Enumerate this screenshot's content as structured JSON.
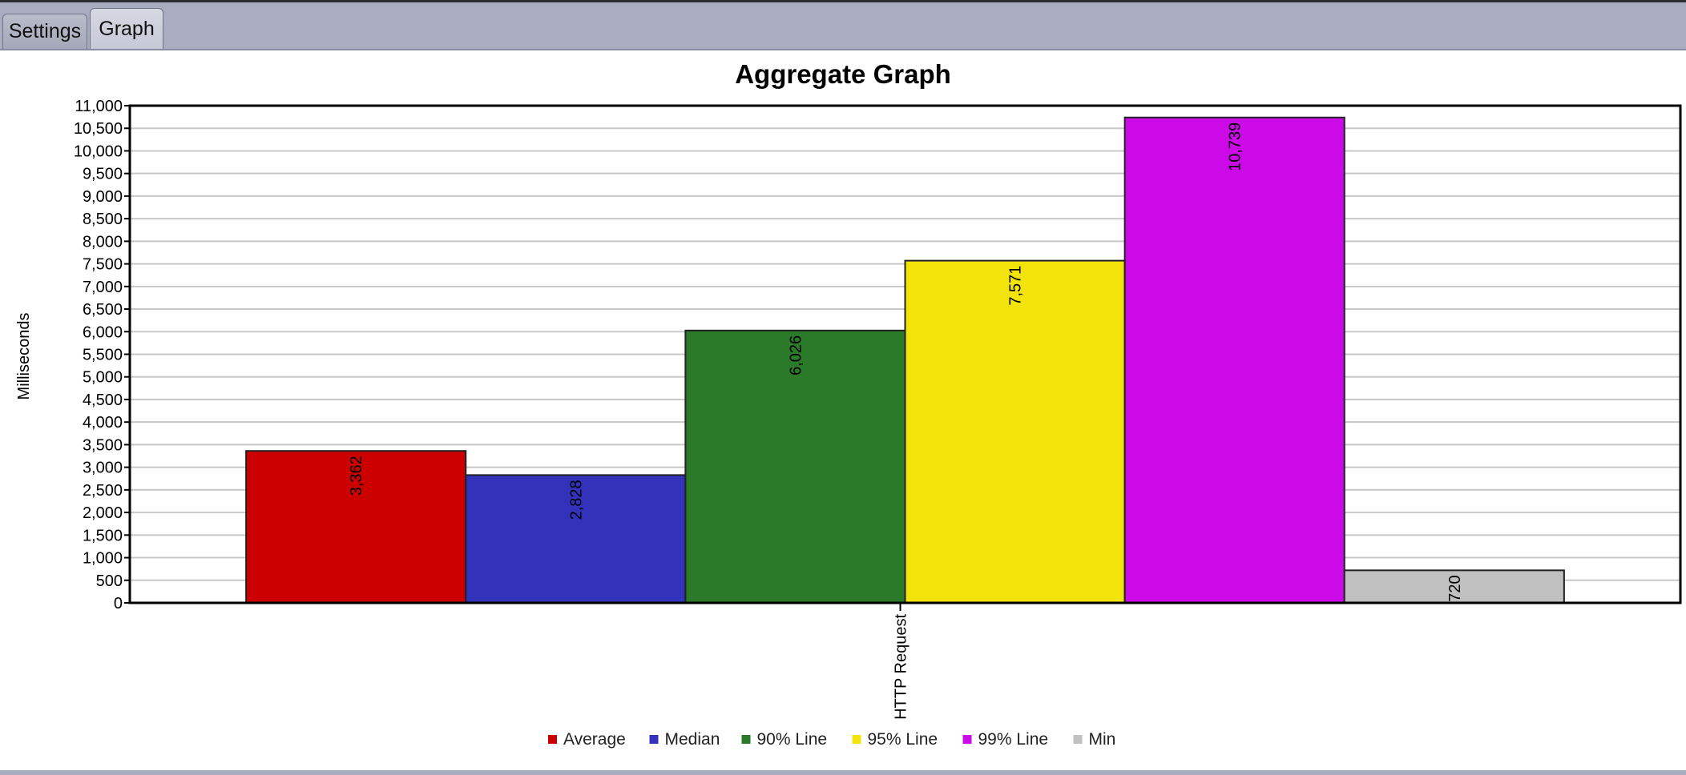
{
  "tabs": [
    {
      "label": "Settings",
      "active": false
    },
    {
      "label": "Graph",
      "active": true
    }
  ],
  "chart_data": {
    "type": "bar",
    "title": "Aggregate Graph",
    "ylabel": "Milliseconds",
    "xlabel": "",
    "categories": [
      "HTTP Request"
    ],
    "ylim": [
      0,
      11000
    ],
    "ytick_step": 500,
    "grid": true,
    "legend_placement": "bottom-center",
    "series": [
      {
        "name": "Average",
        "values": [
          3362
        ],
        "color": "#cc0000",
        "label": "3,362"
      },
      {
        "name": "Median",
        "values": [
          2828
        ],
        "color": "#3232bb",
        "label": "2,828"
      },
      {
        "name": "90% Line",
        "values": [
          6026
        ],
        "color": "#2a7a2a",
        "label": "6,026"
      },
      {
        "name": "95% Line",
        "values": [
          7571
        ],
        "color": "#f2e30a",
        "label": "7,571"
      },
      {
        "name": "99% Line",
        "values": [
          10739
        ],
        "color": "#cc0ae8",
        "label": "10,739"
      },
      {
        "name": "Min",
        "values": [
          720
        ],
        "color": "#c0c0c0",
        "label": "720"
      }
    ]
  }
}
